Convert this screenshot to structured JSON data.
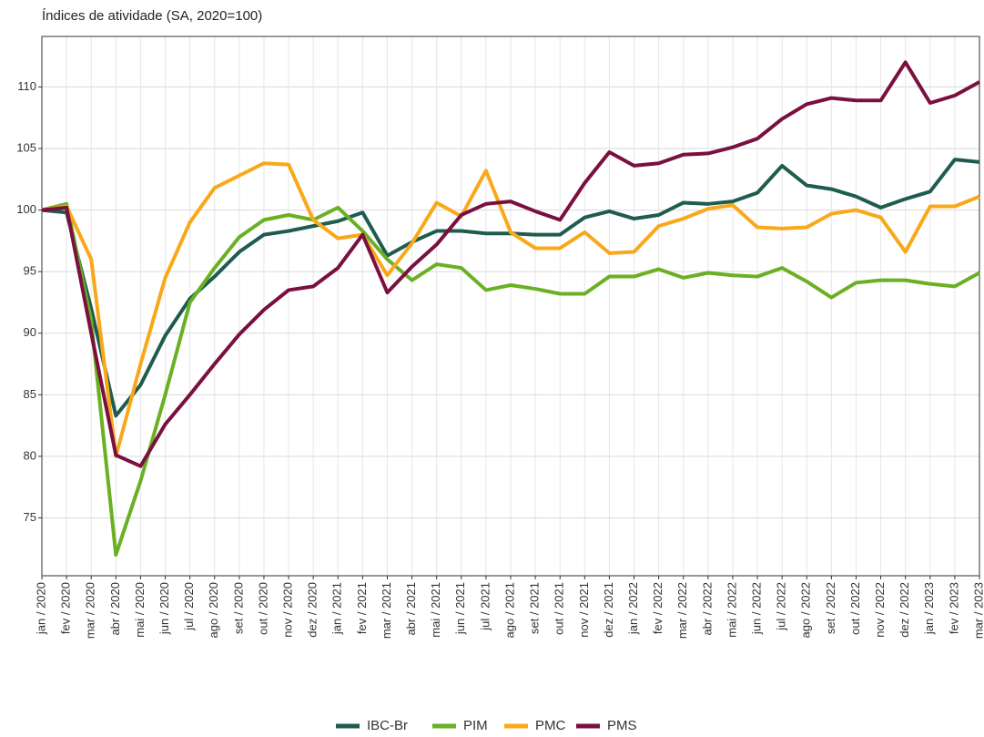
{
  "chart_data": {
    "type": "line",
    "title": "Índices de atividade (SA, 2020=100)",
    "categories": [
      "jan / 2020",
      "fev / 2020",
      "mar / 2020",
      "abr / 2020",
      "mai / 2020",
      "jun / 2020",
      "jul / 2020",
      "ago / 2020",
      "set / 2020",
      "out / 2020",
      "nov / 2020",
      "dez / 2020",
      "jan / 2021",
      "fev / 2021",
      "mar / 2021",
      "abr / 2021",
      "mai / 2021",
      "jun / 2021",
      "jul / 2021",
      "ago / 2021",
      "set / 2021",
      "out / 2021",
      "nov / 2021",
      "dez / 2021",
      "jan / 2022",
      "fev / 2022",
      "mar / 2022",
      "abr / 2022",
      "mai / 2022",
      "jun / 2022",
      "jul / 2022",
      "ago / 2022",
      "set / 2022",
      "out / 2022",
      "nov / 2022",
      "dez / 2022",
      "jan / 2023",
      "fev / 2023",
      "mar / 2023"
    ],
    "series": [
      {
        "name": "IBC-Br",
        "color": "#1f5c4f",
        "values": [
          100,
          99.8,
          92,
          83.3,
          85.8,
          89.8,
          92.8,
          94.6,
          96.6,
          98,
          98.3,
          98.7,
          99.1,
          99.8,
          96.3,
          97.4,
          98.3,
          98.3,
          98.1,
          98.1,
          98.0,
          98.0,
          99.4,
          99.9,
          99.3,
          99.6,
          100.6,
          100.5,
          100.7,
          101.4,
          103.6,
          102,
          101.7,
          101.1,
          100.2,
          100.9,
          101.5,
          104.1,
          103.9
        ]
      },
      {
        "name": "PIM",
        "color": "#6ab023",
        "values": [
          100,
          100.5,
          91,
          72,
          78,
          85,
          92.5,
          95.3,
          97.8,
          99.2,
          99.6,
          99.2,
          100.2,
          98.3,
          96,
          94.3,
          95.6,
          95.3,
          93.5,
          93.9,
          93.6,
          93.2,
          93.2,
          94.6,
          94.6,
          95.2,
          94.5,
          94.9,
          94.7,
          94.6,
          95.3,
          94.2,
          92.9,
          94.1,
          94.3,
          94.3,
          94.0,
          93.8,
          94.9
        ]
      },
      {
        "name": "PMC",
        "color": "#f9a81a",
        "values": [
          100,
          100.3,
          96,
          80,
          87.5,
          94.5,
          99,
          101.8,
          102.8,
          103.8,
          103.7,
          99.2,
          97.7,
          98,
          94.7,
          97.3,
          100.6,
          99.5,
          103.2,
          98.2,
          96.9,
          96.9,
          98.2,
          96.5,
          96.6,
          98.7,
          99.3,
          100.1,
          100.4,
          98.6,
          98.5,
          98.6,
          99.7,
          100,
          99.4,
          96.6,
          100.3,
          100.3,
          101.1
        ]
      },
      {
        "name": "PMS",
        "color": "#7a1040",
        "values": [
          100,
          100.2,
          90,
          80.1,
          79.2,
          82.6,
          85,
          87.5,
          89.9,
          91.9,
          93.5,
          93.8,
          95.3,
          98,
          93.3,
          95.4,
          97.2,
          99.6,
          100.5,
          100.7,
          99.9,
          99.2,
          102.2,
          104.7,
          103.6,
          103.8,
          104.5,
          104.6,
          105.1,
          105.8,
          107.4,
          108.6,
          109.1,
          108.9,
          108.9,
          112,
          108.7,
          109.3,
          110.4
        ]
      }
    ],
    "ylim": [
      70.3,
      114.1
    ],
    "yticks": [
      75,
      80,
      85,
      90,
      95,
      100,
      105,
      110
    ],
    "grid": true,
    "legend": "bottom"
  }
}
